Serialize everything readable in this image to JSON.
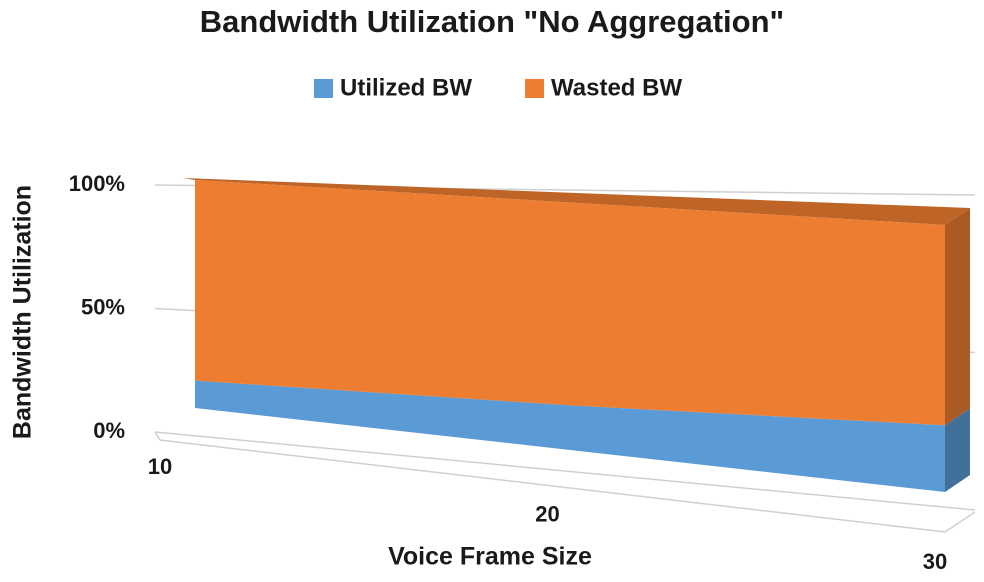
{
  "chart_data": {
    "type": "area3d",
    "title": "Bandwidth Utilization \"No Aggregation\"",
    "x_label": "Voice Frame Size",
    "y_label": "Bandwidth Utilization",
    "categories": [
      "10",
      "20",
      "30"
    ],
    "series": [
      {
        "name": "Utilized BW",
        "color": "#5b9bd5",
        "values": [
          12,
          18,
          25
        ]
      },
      {
        "name": "Wasted BW",
        "color": "#ed7d31",
        "values": [
          88,
          82,
          75
        ]
      }
    ],
    "ylim": [
      0,
      100
    ],
    "yticks": [
      {
        "value": 0,
        "label": "0%"
      },
      {
        "value": 50,
        "label": "50%"
      },
      {
        "value": 100,
        "label": "100%"
      }
    ],
    "stacked": true,
    "grid": true,
    "legend": "top"
  }
}
